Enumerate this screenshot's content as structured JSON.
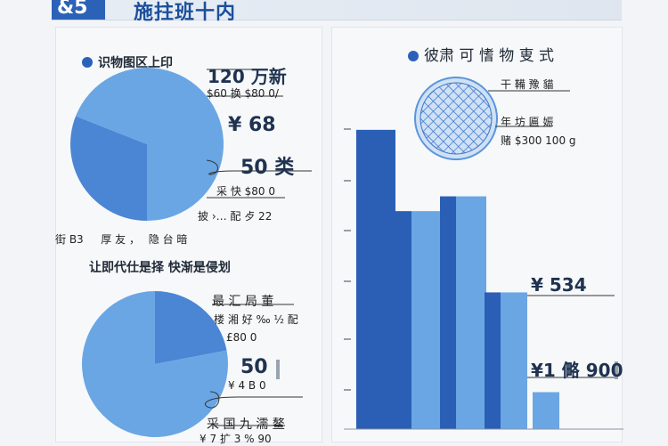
{
  "header": {
    "code": "&5",
    "title": "施拄班十内"
  },
  "left_panel": {
    "pie1": {
      "title": "识物图区上印",
      "labels": {
        "big1": "120 万新",
        "sub1": "$60 换 $80 0/",
        "val2": "¥ 68",
        "val3": "50 类",
        "sub3": "采 快 $80 0",
        "sub4": "披 ›… 配 歺 22"
      }
    },
    "legend_row": "街 B3 　 厚 友 ，　 隐 台 暗",
    "pie2": {
      "title": "让即代仕是择 快渐是侵划",
      "labels": {
        "a": "最 汇 局 董",
        "b": "楼 湘 好 ‰ ½ 配",
        "c": "£80 0",
        "val": "50",
        "d": "¥ 4 B 0",
        "e": "采 国 九 濡 鳌",
        "f": "¥ 7 扩 3 % 90"
      }
    }
  },
  "right_panel": {
    "title": "彼肃 可 愭 物 叓 式",
    "notes": {
      "n1": "干 鞴 豫 貓",
      "n2": "年 坊 匾 娠",
      "n3": "赌 $300 100 g"
    },
    "value_labels": {
      "v1": "¥ 534",
      "v2": "¥1 㑼  900"
    }
  },
  "colors": {
    "dark_blue": "#2a5fb5",
    "mid_blue": "#4a86d4",
    "light_blue": "#6aa6e4",
    "pale_blue": "#8fbdf0"
  },
  "chart_data": [
    {
      "type": "pie",
      "values": [
        31,
        69
      ]
    },
    {
      "type": "pie",
      "values": [
        22,
        78
      ]
    },
    {
      "type": "bar",
      "values": [
        81,
        59,
        59,
        63,
        63,
        37,
        37,
        10
      ],
      "ylim": [
        0,
        100
      ],
      "grid": false
    }
  ]
}
